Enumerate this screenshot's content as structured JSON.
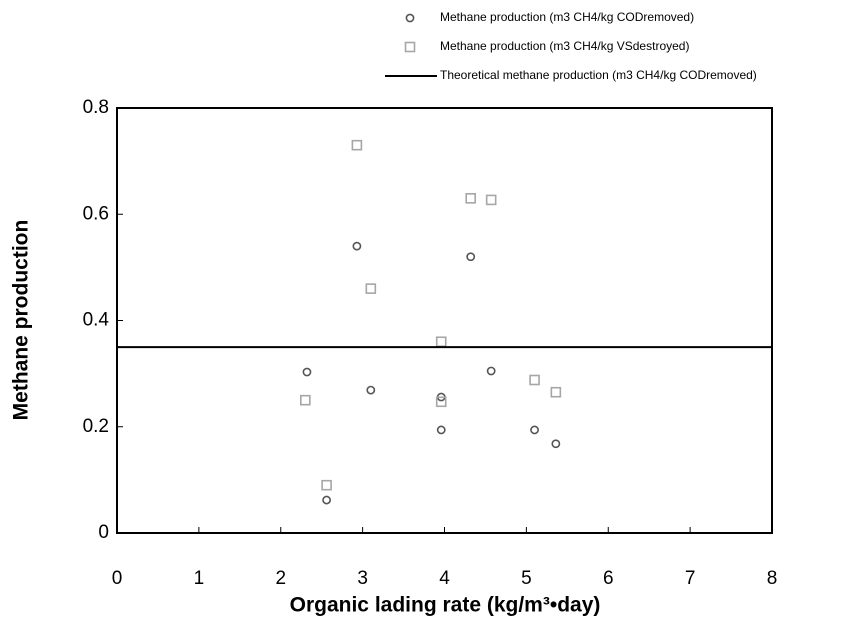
{
  "chart_data": {
    "type": "scatter",
    "x_label": "Organic lading rate (kg/m³•day)",
    "y_label": "Methane production",
    "xlim": [
      0,
      8
    ],
    "xticks": [
      0,
      1,
      2,
      3,
      4,
      5,
      6,
      7,
      8
    ],
    "ylim": [
      0,
      0.8
    ],
    "yticks": [
      0,
      0.2,
      0.4,
      0.6,
      0.8
    ],
    "grid": false,
    "legend": "top-right",
    "series": [
      {
        "name": "Methane production (m3 CH4/kg CODremoved)",
        "color": "#555555",
        "marker": "circle",
        "x": [
          2.32,
          2.56,
          2.93,
          3.1,
          3.96,
          3.96,
          4.32,
          4.57,
          5.1,
          5.36
        ],
        "values": [
          0.303,
          0.062,
          0.54,
          0.269,
          0.256,
          0.194,
          0.52,
          0.305,
          0.194,
          0.168
        ]
      },
      {
        "name": "Methane production (m3 CH4/kg VSdestroyed)",
        "color": "#a6a6a6",
        "marker": "square",
        "x": [
          2.3,
          2.56,
          2.93,
          3.1,
          3.96,
          3.96,
          4.32,
          4.57,
          5.1,
          5.36
        ],
        "values": [
          0.25,
          0.09,
          0.73,
          0.46,
          0.36,
          0.247,
          0.63,
          0.627,
          0.288,
          0.265
        ]
      },
      {
        "name": "Theoretical methane production (m3 CH4/kg CODremoved)",
        "color": "#000000",
        "marker": "line",
        "x": [
          0,
          8
        ],
        "values": [
          0.35,
          0.35
        ]
      }
    ]
  }
}
